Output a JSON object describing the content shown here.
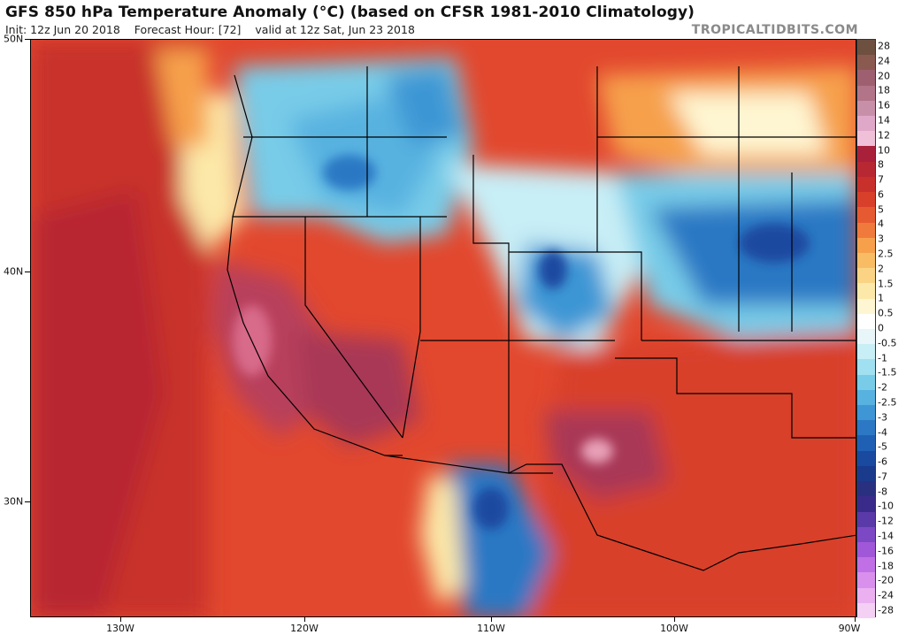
{
  "header": {
    "title": "GFS 850 hPa Temperature Anomaly (°C) (based on CFSR 1981-2010 Climatology)",
    "init": "Init: 12z Jun 20 2018",
    "forecast_hour": "Forecast Hour: [72]",
    "valid": "valid at 12z Sat, Jun 23 2018",
    "brand": "TROPICALTIDBITS.COM"
  },
  "axes": {
    "lat_labels": [
      "50N",
      "40N",
      "30N"
    ],
    "lon_labels": [
      "130W",
      "120W",
      "110W",
      "100W",
      "90W"
    ]
  },
  "colorbar": {
    "labels": [
      "28",
      "24",
      "20",
      "18",
      "16",
      "14",
      "12",
      "10",
      "8",
      "7",
      "6",
      "5",
      "4",
      "3",
      "2.5",
      "2",
      "1.5",
      "1",
      "0.5",
      "0",
      "-0.5",
      "-1",
      "-1.5",
      "-2",
      "-2.5",
      "-3",
      "-4",
      "-5",
      "-6",
      "-7",
      "-8",
      "-10",
      "-12",
      "-14",
      "-16",
      "-18",
      "-20",
      "-24",
      "-28"
    ],
    "colors": [
      "#6e5040",
      "#8a5a50",
      "#9e6070",
      "#b27488",
      "#c890a8",
      "#e0a8c8",
      "#f0c0d8",
      "#a8203a",
      "#b82832",
      "#c8302c",
      "#d8402c",
      "#e65a32",
      "#f07a3c",
      "#f6a04c",
      "#f8bc64",
      "#fad484",
      "#fce8a8",
      "#fef6d2",
      "#ffffff",
      "#e8f6fa",
      "#c8eef6",
      "#a0e0f0",
      "#78cce8",
      "#58b2e0",
      "#3e96d4",
      "#2c78c4",
      "#2060b4",
      "#1a4aa0",
      "#1a3a8c",
      "#2a3080",
      "#3a2a8a",
      "#5a3aa8",
      "#7c48c4",
      "#a058d8",
      "#c070e4",
      "#d890ec",
      "#eab0f0",
      "#f4d0f4"
    ]
  },
  "colors": {
    "hot_core": "#b8405c",
    "hot": "#d8402c",
    "warm": "#f07a3c",
    "mild": "#fad484",
    "neutral": "#ffffff",
    "cool": "#78cce8",
    "cold": "#2c78c4",
    "coldest": "#1a4aa0"
  }
}
